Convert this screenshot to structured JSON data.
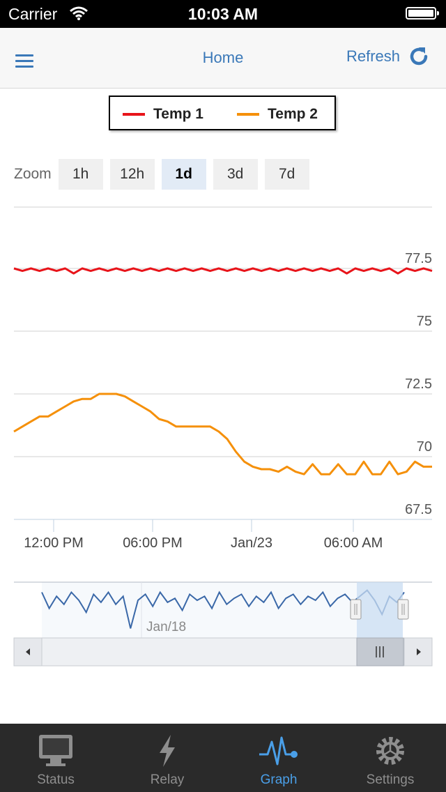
{
  "status_bar": {
    "carrier": "Carrier",
    "time": "10:03 AM"
  },
  "nav": {
    "title": "Home",
    "refresh_label": "Refresh"
  },
  "legend": [
    {
      "name": "Temp 1",
      "color": "#e8141a"
    },
    {
      "name": "Temp 2",
      "color": "#f5900a"
    }
  ],
  "zoom": {
    "label": "Zoom",
    "options": [
      "1h",
      "12h",
      "1d",
      "3d",
      "7d"
    ],
    "selected": "1d"
  },
  "chart_data": {
    "type": "line",
    "series": [
      {
        "name": "Temp 1",
        "color": "#e8141a",
        "values": [
          77.5,
          77.4,
          77.5,
          77.4,
          77.5,
          77.4,
          77.5,
          77.3,
          77.5,
          77.4,
          77.5,
          77.4,
          77.5,
          77.4,
          77.5,
          77.4,
          77.5,
          77.4,
          77.5,
          77.4,
          77.5,
          77.4,
          77.5,
          77.4,
          77.5,
          77.4,
          77.5,
          77.4,
          77.5,
          77.4,
          77.5,
          77.4,
          77.5,
          77.4,
          77.5,
          77.4,
          77.5,
          77.4,
          77.5,
          77.3,
          77.5,
          77.4,
          77.5,
          77.4,
          77.5,
          77.3,
          77.5,
          77.4,
          77.5,
          77.4
        ]
      },
      {
        "name": "Temp 2",
        "color": "#f5900a",
        "values": [
          71.0,
          71.2,
          71.4,
          71.6,
          71.6,
          71.8,
          72.0,
          72.2,
          72.3,
          72.3,
          72.5,
          72.5,
          72.5,
          72.4,
          72.2,
          72.0,
          71.8,
          71.5,
          71.4,
          71.2,
          71.2,
          71.2,
          71.2,
          71.2,
          71.0,
          70.7,
          70.2,
          69.8,
          69.6,
          69.5,
          69.5,
          69.4,
          69.6,
          69.4,
          69.3,
          69.7,
          69.3,
          69.3,
          69.7,
          69.3,
          69.3,
          69.8,
          69.3,
          69.3,
          69.8,
          69.3,
          69.4,
          69.8,
          69.6,
          69.6
        ]
      }
    ],
    "y_ticks": [
      67.5,
      70,
      72.5,
      75,
      77.5
    ],
    "y_tick_labels": [
      "67.5",
      "70",
      "72.5",
      "75",
      "77.5"
    ],
    "ylim": [
      67.5,
      80
    ],
    "x_tick_labels": [
      "12:00 PM",
      "06:00 PM",
      "Jan/23",
      "06:00 AM"
    ],
    "grid": true
  },
  "navigator": {
    "label": "Jan/18",
    "values": [
      76.6,
      75.8,
      76.4,
      76.0,
      76.6,
      76.2,
      75.6,
      76.5,
      76.1,
      76.6,
      76.0,
      76.4,
      74.8,
      76.2,
      76.5,
      75.9,
      76.6,
      76.1,
      76.3,
      75.7,
      76.5,
      76.2,
      76.4,
      75.8,
      76.6,
      76.0,
      76.3,
      76.5,
      75.9,
      76.4,
      76.1,
      76.6,
      75.8,
      76.3,
      76.5,
      76.0,
      76.4,
      76.2,
      76.6,
      75.9,
      76.3,
      76.5,
      76.1,
      76.4,
      76.7,
      76.2,
      75.5,
      76.4,
      76.1,
      76.6
    ]
  },
  "tabs": [
    {
      "label": "Status",
      "icon": "monitor-icon",
      "active": false
    },
    {
      "label": "Relay",
      "icon": "lightning-icon",
      "active": false
    },
    {
      "label": "Graph",
      "icon": "pulse-icon",
      "active": true
    },
    {
      "label": "Settings",
      "icon": "gear-icon",
      "active": false
    }
  ]
}
